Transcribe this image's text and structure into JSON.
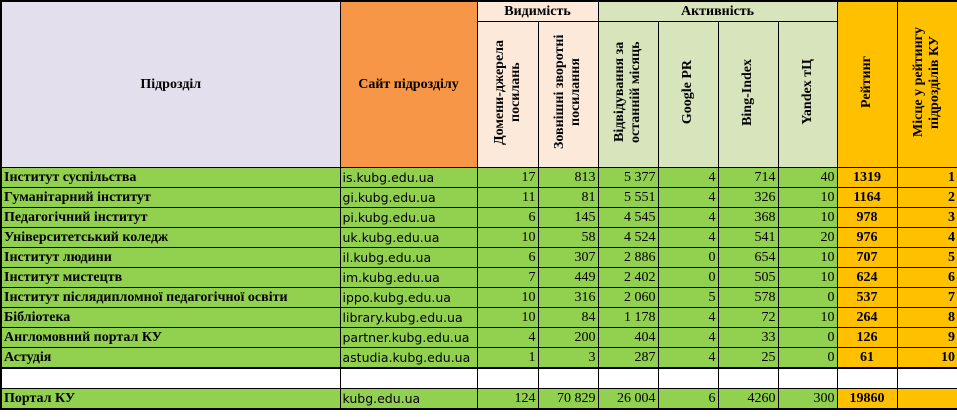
{
  "header": {
    "department": "Підрозділ",
    "site": "Сайт підрозділу",
    "group_visibility": "Видимість",
    "group_activity": "Активність",
    "domains": "Домени-джерела посилань",
    "backlinks": "Зовнішні зворотні посилання",
    "visits": "Відвідування за останній місяць",
    "google_pr": "Google PR",
    "bing_index": "Bing-Index",
    "yandex_tic": "Yandex тЦ",
    "rating": "Рейтинг",
    "place": "Місце у рейтингу підрозділів КУ"
  },
  "rows": [
    {
      "department": "Інститут суспільства",
      "site": "is.kubg.edu.ua",
      "domains": "17",
      "backlinks": "813",
      "visits": "5 377",
      "google_pr": "4",
      "bing_index": "714",
      "yandex_tic": "40",
      "rating": "1319",
      "place": "1"
    },
    {
      "department": "Гуманітарний інститут",
      "site": "gi.kubg.edu.ua",
      "domains": "11",
      "backlinks": "81",
      "visits": "5 551",
      "google_pr": "4",
      "bing_index": "326",
      "yandex_tic": "10",
      "rating": "1164",
      "place": "2"
    },
    {
      "department": "Педагогічний інститут",
      "site": "pi.kubg.edu.ua",
      "domains": "6",
      "backlinks": "145",
      "visits": "4 545",
      "google_pr": "4",
      "bing_index": "368",
      "yandex_tic": "10",
      "rating": "978",
      "place": "3"
    },
    {
      "department": "Університетський коледж",
      "site": "uk.kubg.edu.ua",
      "domains": "10",
      "backlinks": "58",
      "visits": "4 524",
      "google_pr": "4",
      "bing_index": "541",
      "yandex_tic": "20",
      "rating": "976",
      "place": "4"
    },
    {
      "department": "Інститут людини",
      "site": "il.kubg.edu.ua",
      "domains": "6",
      "backlinks": "307",
      "visits": "2 886",
      "google_pr": "0",
      "bing_index": "654",
      "yandex_tic": "10",
      "rating": "707",
      "place": "5"
    },
    {
      "department": "Інститут мистецтв",
      "site": "im.kubg.edu.ua",
      "domains": "7",
      "backlinks": "449",
      "visits": "2 402",
      "google_pr": "0",
      "bing_index": "505",
      "yandex_tic": "10",
      "rating": "624",
      "place": "6"
    },
    {
      "department": "Інститут післядипломної педагогічної освіти",
      "site": "ippo.kubg.edu.ua",
      "domains": "10",
      "backlinks": "316",
      "visits": "2 060",
      "google_pr": "5",
      "bing_index": "578",
      "yandex_tic": "0",
      "rating": "537",
      "place": "7"
    },
    {
      "department": "Бібліотека",
      "site": "library.kubg.edu.ua",
      "domains": "10",
      "backlinks": "84",
      "visits": "1 178",
      "google_pr": "4",
      "bing_index": "72",
      "yandex_tic": "10",
      "rating": "264",
      "place": "8"
    },
    {
      "department": "Англомовний портал КУ",
      "site": "partner.kubg.edu.ua",
      "domains": "4",
      "backlinks": "200",
      "visits": "404",
      "google_pr": "4",
      "bing_index": "33",
      "yandex_tic": "0",
      "rating": "126",
      "place": "9"
    },
    {
      "department": "Астудія",
      "site": "astudia.kubg.edu.ua",
      "domains": "1",
      "backlinks": "3",
      "visits": "287",
      "google_pr": "4",
      "bing_index": "25",
      "yandex_tic": "0",
      "rating": "61",
      "place": "10"
    }
  ],
  "portal": {
    "department": "Портал КУ",
    "site": "kubg.edu.ua",
    "domains": "124",
    "backlinks": "70 829",
    "visits": "26 004",
    "google_pr": "6",
    "bing_index": "4260",
    "yandex_tic": "300",
    "rating": "19860",
    "place": ""
  }
}
